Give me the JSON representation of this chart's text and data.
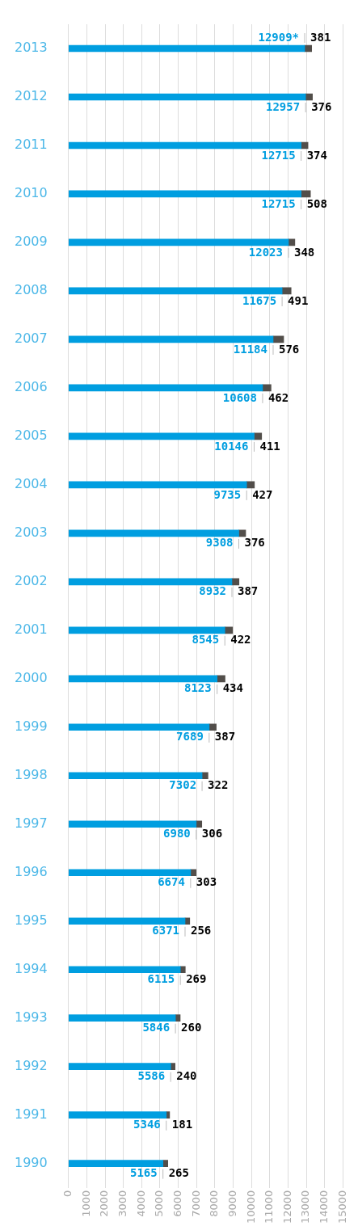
{
  "chart_data": {
    "type": "bar",
    "orientation": "horizontal",
    "stacked": true,
    "categories": [
      "2013",
      "2012",
      "2011",
      "2010",
      "2009",
      "2008",
      "2007",
      "2006",
      "2005",
      "2004",
      "2003",
      "2002",
      "2001",
      "2000",
      "1999",
      "1998",
      "1997",
      "1996",
      "1995",
      "1994",
      "1993",
      "1992",
      "1991",
      "1990"
    ],
    "series": [
      {
        "color": "#009ee0",
        "values": [
          12909,
          12957,
          12715,
          12715,
          12023,
          11675,
          11184,
          10608,
          10146,
          9735,
          9308,
          8932,
          8545,
          8123,
          7689,
          7302,
          6980,
          6674,
          6371,
          6115,
          5846,
          5586,
          5346,
          5165
        ],
        "value_labels": [
          "12909*",
          "12957",
          "12715",
          "12715",
          "12023",
          "11675",
          "11184",
          "10608",
          "10146",
          "9735",
          "9308",
          "8932",
          "8545",
          "8123",
          "7689",
          "7302",
          "6980",
          "6674",
          "6371",
          "6115",
          "5846",
          "5586",
          "5346",
          "5165"
        ]
      },
      {
        "color": "#524e4a",
        "values": [
          381,
          376,
          374,
          508,
          348,
          491,
          576,
          462,
          411,
          427,
          376,
          387,
          422,
          434,
          387,
          322,
          306,
          303,
          256,
          269,
          260,
          240,
          181,
          265
        ],
        "value_labels": [
          "381",
          "376",
          "374",
          "508",
          "348",
          "491",
          "576",
          "462",
          "411",
          "427",
          "376",
          "387",
          "422",
          "434",
          "387",
          "322",
          "306",
          "303",
          "256",
          "269",
          "260",
          "240",
          "181",
          "265"
        ]
      }
    ],
    "xlim": [
      0,
      15000
    ],
    "xticks": [
      0,
      1000,
      2000,
      3000,
      4000,
      5000,
      6000,
      7000,
      8000,
      9000,
      10000,
      11000,
      12000,
      13000,
      14000,
      15000
    ],
    "grid": "x",
    "legend": false
  }
}
